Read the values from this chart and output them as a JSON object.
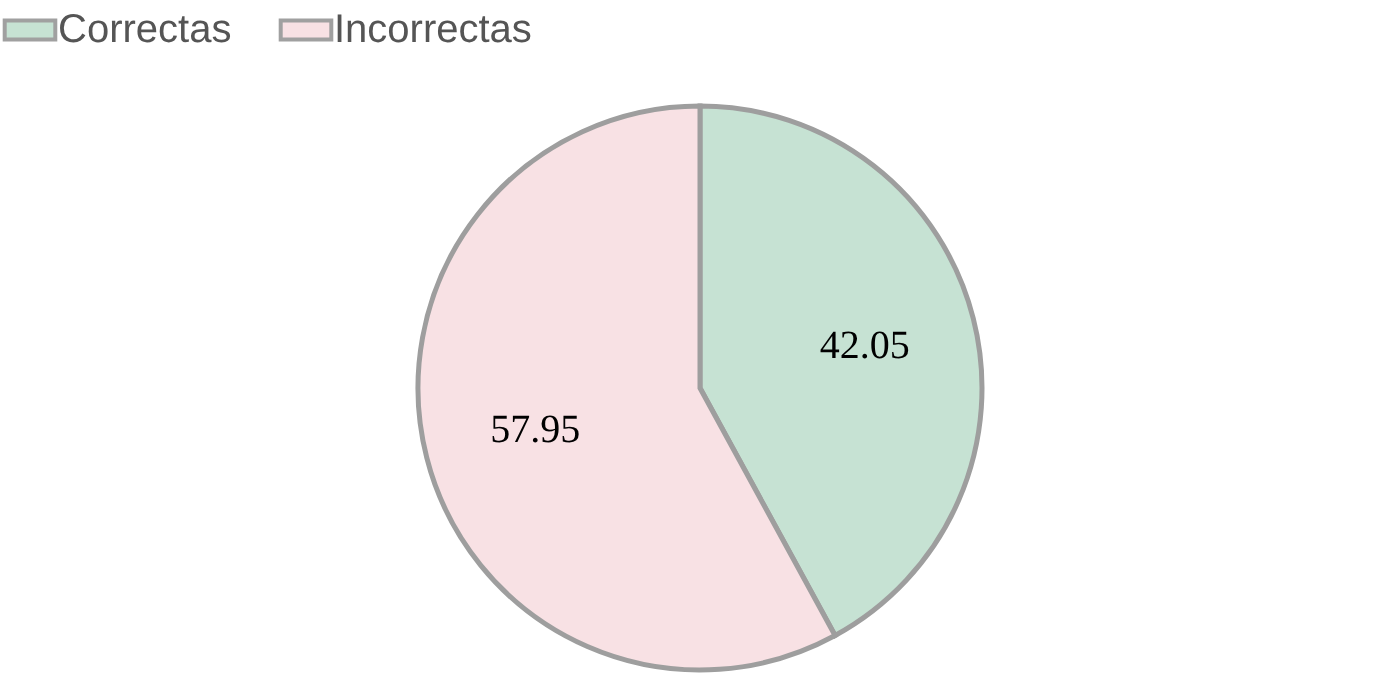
{
  "chart_data": {
    "type": "pie",
    "categories": [
      "Correctas",
      "Incorrectas"
    ],
    "values": [
      42.05,
      57.95
    ],
    "colors": [
      "#c6e2d3",
      "#f8e1e4"
    ],
    "data_labels": true,
    "legend": "top"
  }
}
